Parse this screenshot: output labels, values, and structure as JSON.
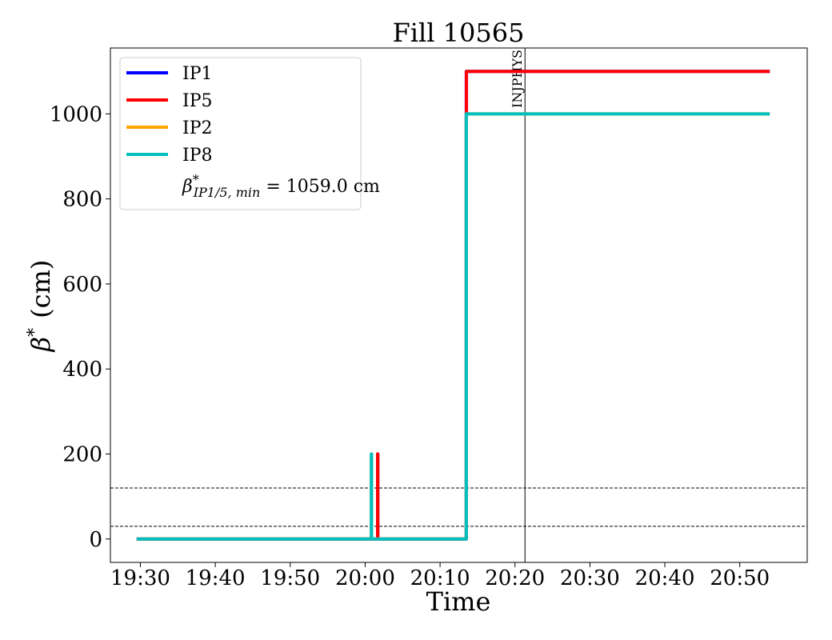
{
  "chart_data": {
    "type": "line",
    "title": "Fill 10565",
    "xlabel": "Time",
    "ylabel_symbol": "β",
    "ylabel_sup": "*",
    "ylabel_unit": "(cm)",
    "x_ticks": [
      "19:30",
      "19:40",
      "19:50",
      "20:00",
      "20:10",
      "20:20",
      "20:30",
      "20:40",
      "20:50"
    ],
    "y_ticks": [
      0,
      200,
      400,
      600,
      800,
      1000
    ],
    "y_tick_labels": [
      "0",
      "200",
      "400",
      "600",
      "800",
      "1000"
    ],
    "xlim": [
      "19:26",
      "20:59"
    ],
    "ylim": [
      -55,
      1155
    ],
    "grid": false,
    "legend_position": "top-left",
    "series": [
      {
        "name": "IP1",
        "color": "#0000ff",
        "points": [
          [
            "19:29:30",
            0
          ],
          [
            "20:01:40",
            0
          ],
          [
            "20:01:40",
            200
          ],
          [
            "20:01:41",
            200
          ],
          [
            "20:01:41",
            0
          ],
          [
            "20:13:30",
            0
          ],
          [
            "20:13:30",
            1100
          ],
          [
            "20:54:00",
            1100
          ]
        ]
      },
      {
        "name": "IP5",
        "color": "#ff0000",
        "points": [
          [
            "19:29:30",
            0
          ],
          [
            "20:01:40",
            0
          ],
          [
            "20:01:40",
            200
          ],
          [
            "20:01:41",
            200
          ],
          [
            "20:01:41",
            0
          ],
          [
            "20:13:30",
            0
          ],
          [
            "20:13:30",
            1000
          ],
          [
            "20:13:31",
            1000
          ],
          [
            "20:13:31",
            1100
          ],
          [
            "20:54:00",
            1100
          ]
        ]
      },
      {
        "name": "IP2",
        "color": "#ffa500",
        "points": [
          [
            "19:29:30",
            0
          ],
          [
            "20:00:50",
            0
          ],
          [
            "20:00:50",
            200
          ],
          [
            "20:00:51",
            200
          ],
          [
            "20:00:51",
            0
          ],
          [
            "20:13:30",
            0
          ],
          [
            "20:13:30",
            1000
          ],
          [
            "20:54:00",
            1000
          ]
        ]
      },
      {
        "name": "IP8",
        "color": "#00bfbf",
        "points": [
          [
            "19:29:30",
            0
          ],
          [
            "20:00:50",
            0
          ],
          [
            "20:00:50",
            200
          ],
          [
            "20:00:51",
            200
          ],
          [
            "20:00:51",
            0
          ],
          [
            "20:13:30",
            0
          ],
          [
            "20:13:30",
            1000
          ],
          [
            "20:54:00",
            1000
          ]
        ]
      }
    ],
    "legend_extra": {
      "symbol": "β",
      "sup": "*",
      "sub": "IP1/5, min",
      "value_text": " = 1059.0 cm"
    },
    "hlines": [
      {
        "y": 30,
        "style": "dashed",
        "color": "#000000"
      },
      {
        "y": 120,
        "style": "dashed",
        "color": "#000000"
      }
    ],
    "vlines": [
      {
        "x": "20:21:20",
        "label": "INJPHYS",
        "color": "#000000"
      }
    ]
  }
}
